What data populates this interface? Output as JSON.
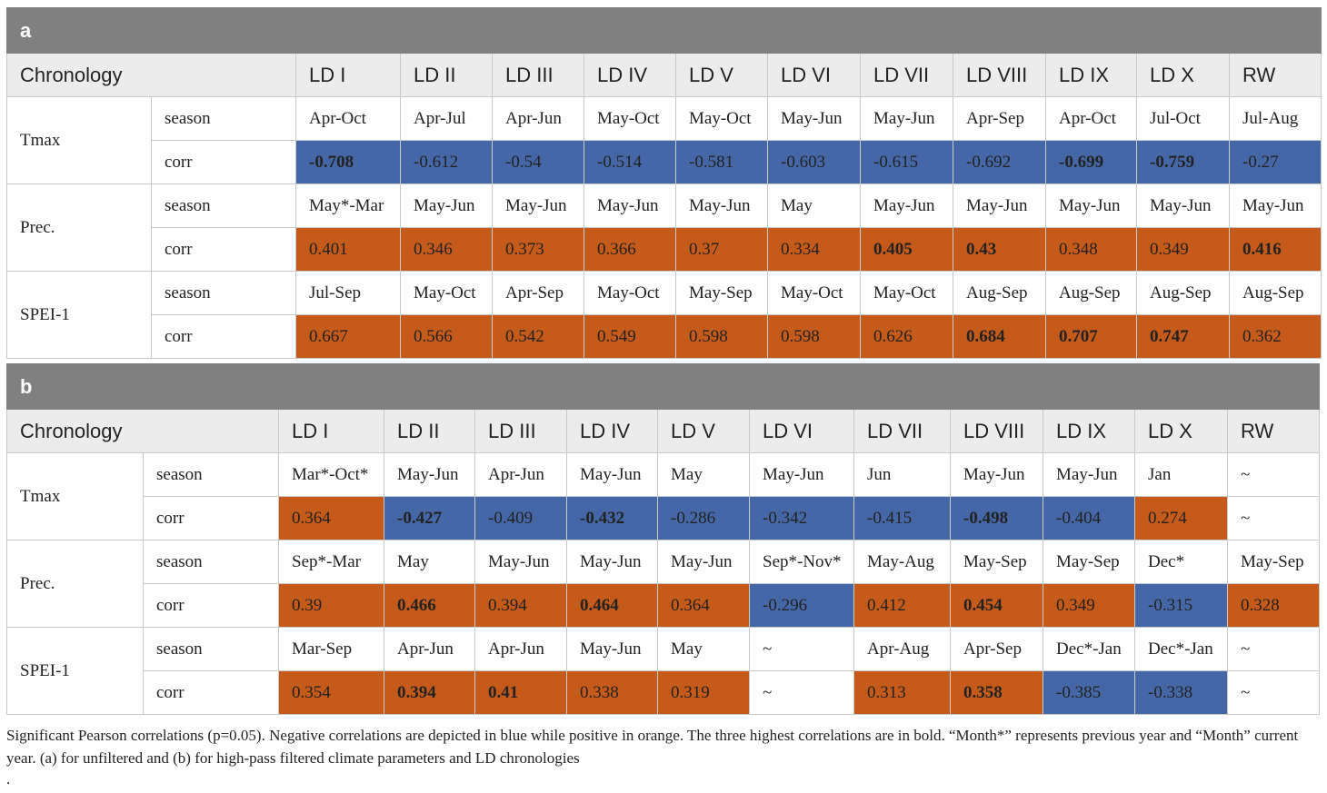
{
  "tables": [
    {
      "label": "a",
      "header": {
        "chronology": "Chronology",
        "columns": [
          "LD I",
          "LD II",
          "LD III",
          "LD IV",
          "LD V",
          "LD VI",
          "LD VII",
          "LD VIII",
          "LD IX",
          "LD X",
          "RW"
        ]
      },
      "groups": [
        {
          "name": "Tmax",
          "season": [
            "Apr-Oct",
            "Apr-Jul",
            "Apr-Jun",
            "May-Oct",
            "May-Oct",
            "May-Jun",
            "May-Jun",
            "Apr-Sep",
            "Apr-Oct",
            "Jul-Oct",
            "Jul-Aug"
          ],
          "corr": [
            "-0.708",
            "-0.612",
            "-0.54",
            "-0.514",
            "-0.581",
            "-0.603",
            "-0.615",
            "-0.692",
            "-0.699",
            "-0.759",
            "-0.27"
          ],
          "sign": [
            "neg",
            "neg",
            "neg",
            "neg",
            "neg",
            "neg",
            "neg",
            "neg",
            "neg",
            "neg",
            "neg"
          ],
          "bold": [
            true,
            false,
            false,
            false,
            false,
            false,
            false,
            false,
            true,
            true,
            false
          ]
        },
        {
          "name": "Prec.",
          "season": [
            "May*-Mar",
            "May-Jun",
            "May-Jun",
            "May-Jun",
            "May-Jun",
            "May",
            "May-Jun",
            "May-Jun",
            "May-Jun",
            "May-Jun",
            "May-Jun"
          ],
          "corr": [
            "0.401",
            "0.346",
            "0.373",
            "0.366",
            "0.37",
            "0.334",
            "0.405",
            "0.43",
            "0.348",
            "0.349",
            "0.416"
          ],
          "sign": [
            "pos",
            "pos",
            "pos",
            "pos",
            "pos",
            "pos",
            "pos",
            "pos",
            "pos",
            "pos",
            "pos"
          ],
          "bold": [
            false,
            false,
            false,
            false,
            false,
            false,
            true,
            true,
            false,
            false,
            true
          ]
        },
        {
          "name": "SPEI-1",
          "season": [
            "Jul-Sep",
            "May-Oct",
            "Apr-Sep",
            "May-Oct",
            "May-Sep",
            "May-Oct",
            "May-Oct",
            "Aug-Sep",
            "Aug-Sep",
            "Aug-Sep",
            "Aug-Sep"
          ],
          "corr": [
            "0.667",
            "0.566",
            "0.542",
            "0.549",
            "0.598",
            "0.598",
            "0.626",
            "0.684",
            "0.707",
            "0.747",
            "0.362"
          ],
          "sign": [
            "pos",
            "pos",
            "pos",
            "pos",
            "pos",
            "pos",
            "pos",
            "pos",
            "pos",
            "pos",
            "pos"
          ],
          "bold": [
            false,
            false,
            false,
            false,
            false,
            false,
            false,
            true,
            true,
            true,
            false
          ]
        }
      ]
    },
    {
      "label": "b",
      "header": {
        "chronology": "Chronology",
        "columns": [
          "LD I",
          "LD II",
          "LD III",
          "LD IV",
          "LD V",
          "LD VI",
          "LD VII",
          "LD VIII",
          "LD IX",
          "LD X",
          "RW"
        ]
      },
      "groups": [
        {
          "name": "Tmax",
          "season": [
            "Mar*-Oct*",
            "May-Jun",
            "Apr-Jun",
            "May-Jun",
            "May",
            "May-Jun",
            "Jun",
            "May-Jun",
            "May-Jun",
            "Jan",
            "~"
          ],
          "corr": [
            "0.364",
            "-0.427",
            "-0.409",
            "-0.432",
            "-0.286",
            "-0.342",
            "-0.415",
            "-0.498",
            "-0.404",
            "0.274",
            "~"
          ],
          "sign": [
            "pos",
            "neg",
            "neg",
            "neg",
            "neg",
            "neg",
            "neg",
            "neg",
            "neg",
            "pos",
            "none"
          ],
          "bold": [
            false,
            true,
            false,
            true,
            false,
            false,
            false,
            true,
            false,
            false,
            false
          ]
        },
        {
          "name": "Prec.",
          "season": [
            "Sep*-Mar",
            "May",
            "May-Jun",
            "May-Jun",
            "May-Jun",
            "Sep*-Nov*",
            "May-Aug",
            "May-Sep",
            "May-Sep",
            "Dec*",
            "May-Sep"
          ],
          "corr": [
            "0.39",
            "0.466",
            "0.394",
            "0.464",
            "0.364",
            "-0.296",
            "0.412",
            "0.454",
            "0.349",
            "-0.315",
            "0.328"
          ],
          "sign": [
            "pos",
            "pos",
            "pos",
            "pos",
            "pos",
            "neg",
            "pos",
            "pos",
            "pos",
            "neg",
            "pos"
          ],
          "bold": [
            false,
            true,
            false,
            true,
            false,
            false,
            false,
            true,
            false,
            false,
            false
          ]
        },
        {
          "name": "SPEI-1",
          "season": [
            "Mar-Sep",
            "Apr-Jun",
            "Apr-Jun",
            "May-Jun",
            "May",
            "~",
            "Apr-Aug",
            "Apr-Sep",
            "Dec*-Jan",
            "Dec*-Jan",
            "~"
          ],
          "corr": [
            "0.354",
            "0.394",
            "0.41",
            "0.338",
            "0.319",
            "~",
            "0.313",
            "0.358",
            "-0.385",
            "-0.338",
            "~"
          ],
          "sign": [
            "pos",
            "pos",
            "pos",
            "pos",
            "pos",
            "none",
            "pos",
            "pos",
            "neg",
            "neg",
            "none"
          ],
          "bold": [
            false,
            true,
            true,
            false,
            false,
            false,
            false,
            true,
            false,
            false,
            false
          ]
        }
      ]
    }
  ],
  "row_labels": {
    "season": "season",
    "corr": "corr"
  },
  "caption": "Significant Pearson correlations (p=0.05). Negative correlations are depicted in blue while positive in orange. The three highest correlations are in bold. “Month*” represents previous year and “Month” current year. (a) for unfiltered and (b) for high-pass filtered climate parameters and LD chronologies",
  "trailing_mark": ".",
  "colors": {
    "negative": "#4566a7",
    "positive": "#c55a1a",
    "section_bar": "#7f807f",
    "header_bg": "#ececec"
  }
}
